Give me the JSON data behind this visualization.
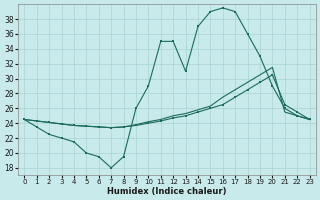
{
  "xlabel": "Humidex (Indice chaleur)",
  "bg_color": "#c8eaea",
  "grid_color": "#aad4d4",
  "line_color": "#1a6b5a",
  "xlim": [
    -0.5,
    23.5
  ],
  "ylim": [
    17,
    40
  ],
  "xticks": [
    0,
    1,
    2,
    3,
    4,
    5,
    6,
    7,
    8,
    9,
    10,
    11,
    12,
    13,
    14,
    15,
    16,
    17,
    18,
    19,
    20,
    21,
    22,
    23
  ],
  "yticks": [
    18,
    20,
    22,
    24,
    26,
    28,
    30,
    32,
    34,
    36,
    38
  ],
  "line1_x": [
    0,
    1,
    2,
    3,
    4,
    5,
    6,
    7,
    8,
    9,
    10,
    11,
    12,
    13,
    14,
    15,
    16,
    17,
    18,
    19,
    20,
    21,
    22,
    23
  ],
  "line1_y": [
    24.5,
    23.5,
    22.5,
    22,
    21.5,
    20,
    19.5,
    18,
    19.5,
    26,
    29,
    35,
    35,
    31,
    37,
    39,
    39.5,
    39,
    36,
    33,
    29,
    26,
    25,
    24.5
  ],
  "line2_x": [
    0,
    1,
    2,
    3,
    4,
    5,
    6,
    7,
    8,
    9,
    10,
    11,
    12,
    13,
    14,
    15,
    16,
    17,
    18,
    19,
    20,
    21,
    22,
    23
  ],
  "line2_y": [
    24.5,
    24.3,
    24.1,
    23.9,
    23.7,
    23.6,
    23.5,
    23.4,
    23.5,
    23.7,
    24.0,
    24.3,
    24.7,
    25.0,
    25.5,
    26.0,
    26.5,
    27.5,
    28.5,
    29.5,
    30.5,
    26.5,
    25.5,
    24.5
  ],
  "line3_x": [
    0,
    1,
    2,
    3,
    4,
    5,
    6,
    7,
    8,
    9,
    10,
    11,
    12,
    13,
    14,
    15,
    16,
    17,
    18,
    19,
    20,
    21,
    22,
    23
  ],
  "line3_y": [
    24.5,
    24.3,
    24.1,
    23.9,
    23.7,
    23.6,
    23.5,
    23.4,
    23.5,
    23.8,
    24.2,
    24.5,
    25.0,
    25.3,
    25.8,
    26.3,
    27.5,
    28.5,
    29.5,
    30.5,
    31.5,
    25.5,
    25.0,
    24.5
  ]
}
